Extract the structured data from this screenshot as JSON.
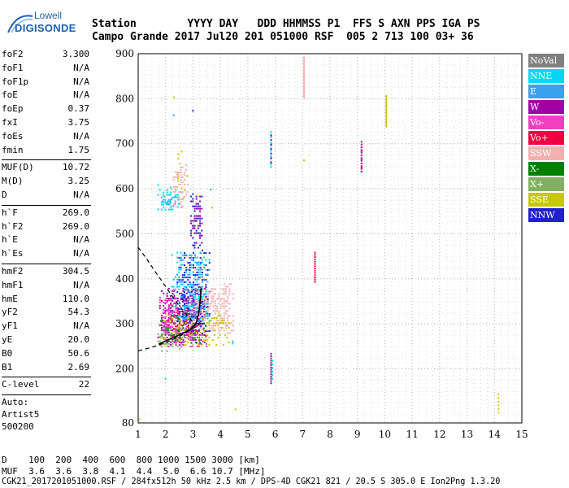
{
  "logo": {
    "line1": "Lowell",
    "line2": "DIGISONDE"
  },
  "header": {
    "row1": [
      "Station",
      "YYYY",
      "DAY",
      "DDD",
      "HHMMSS",
      "P1",
      "FFS",
      "S",
      "AXN",
      "PPS",
      "IGA",
      "PS"
    ],
    "row2": [
      "Campo Grande",
      "2017",
      "Jul20",
      "201",
      "051000",
      "RSF",
      "005",
      "2",
      "713",
      "100",
      "03+",
      "36"
    ]
  },
  "params": {
    "group1": [
      {
        "k": "foF2",
        "v": "3.300"
      },
      {
        "k": "foF1",
        "v": "N/A"
      },
      {
        "k": "foF1p",
        "v": "N/A"
      },
      {
        "k": "foE",
        "v": "N/A"
      },
      {
        "k": "foEp",
        "v": "0.37"
      },
      {
        "k": "fxI",
        "v": "3.75"
      },
      {
        "k": "foEs",
        "v": "N/A"
      },
      {
        "k": "fmin",
        "v": "1.75"
      }
    ],
    "group2": [
      {
        "k": "MUF(D)",
        "v": "10.72"
      },
      {
        "k": "M(D)",
        "v": "3.25"
      },
      {
        "k": "D",
        "v": "N/A"
      }
    ],
    "group3": [
      {
        "k": "h`F",
        "v": "269.0"
      },
      {
        "k": "h`F2",
        "v": "269.0"
      },
      {
        "k": "h`E",
        "v": "N/A"
      },
      {
        "k": "h`Es",
        "v": "N/A"
      }
    ],
    "group4": [
      {
        "k": "hmF2",
        "v": "304.5"
      },
      {
        "k": "hmF1",
        "v": "N/A"
      },
      {
        "k": "hmE",
        "v": "110.0"
      },
      {
        "k": "yF2",
        "v": "54.3"
      },
      {
        "k": "yF1",
        "v": "N/A"
      },
      {
        "k": "yE",
        "v": "20.0"
      },
      {
        "k": "B0",
        "v": "50.6"
      },
      {
        "k": "B1",
        "v": "2.69"
      }
    ],
    "group5": [
      {
        "k": "C-level",
        "v": "22"
      }
    ],
    "auto": [
      "Auto:",
      "Artist5",
      "500200"
    ]
  },
  "legend": [
    {
      "label": "NoVal",
      "color": "#808080"
    },
    {
      "label": "NNE",
      "color": "#00d8f0"
    },
    {
      "label": "E",
      "color": "#3aa0f0"
    },
    {
      "label": "W",
      "color": "#a000a8"
    },
    {
      "label": "Vo-",
      "color": "#f040c0"
    },
    {
      "label": "Vo+",
      "color": "#f00040"
    },
    {
      "label": "SSW",
      "color": "#f4b0b0"
    },
    {
      "label": "X-",
      "color": "#008000"
    },
    {
      "label": "X+",
      "color": "#80b060"
    },
    {
      "label": "SSE",
      "color": "#c8c800"
    },
    {
      "label": "NNW",
      "color": "#2020d0"
    }
  ],
  "bottom": {
    "row_d": "D    100  200  400  600  800 1000 1500 3000 [km]",
    "row_muf": "MUF  3.6  3.6  3.8  4.1  4.4  5.0  6.6 10.7 [MHz]",
    "footer": "CGK21_2017201051000.RSF / 284fx512h 50 kHz 2.5 km / DPS-4D CGK21 821 / 20.5 S 305.0 E Ion2Png 1.3.20"
  },
  "chart_data": {
    "type": "scatter",
    "xlim": [
      1,
      15
    ],
    "ylim": [
      80,
      900
    ],
    "x_ticks": [
      1,
      2,
      3,
      4,
      5,
      6,
      7,
      8,
      9,
      10,
      11,
      12,
      13,
      14,
      15
    ],
    "y_ticks": [
      80,
      200,
      300,
      400,
      500,
      600,
      700,
      800,
      900
    ],
    "grid": true,
    "profile_curve": [
      [
        1.75,
        255
      ],
      [
        2.0,
        262
      ],
      [
        2.3,
        270
      ],
      [
        2.6,
        278
      ],
      [
        2.9,
        288
      ],
      [
        3.1,
        300
      ],
      [
        3.2,
        320
      ],
      [
        3.25,
        345
      ],
      [
        3.3,
        380
      ]
    ],
    "model_dashed_curve": [
      [
        1.0,
        470
      ],
      [
        1.3,
        445
      ],
      [
        1.6,
        418
      ],
      [
        1.9,
        392
      ],
      [
        2.2,
        365
      ],
      [
        2.5,
        340
      ],
      [
        2.8,
        318
      ],
      [
        3.0,
        304
      ],
      [
        3.2,
        300
      ]
    ],
    "lower_dashed_curve": [
      [
        1.0,
        240
      ],
      [
        1.5,
        248
      ],
      [
        2.0,
        258
      ],
      [
        2.5,
        272
      ],
      [
        3.0,
        290
      ],
      [
        3.3,
        302
      ]
    ],
    "echo_clusters": [
      {
        "color": "#a000a8",
        "x": [
          1.7,
          3.4
        ],
        "y": [
          250,
          380
        ],
        "density": 0.55
      },
      {
        "color": "#f040c0",
        "x": [
          1.7,
          3.5
        ],
        "y": [
          250,
          360
        ],
        "density": 0.35
      },
      {
        "color": "#f00040",
        "x": [
          2.2,
          3.6
        ],
        "y": [
          270,
          340
        ],
        "density": 0.2
      },
      {
        "color": "#f4b0b0",
        "x": [
          3.0,
          4.5
        ],
        "y": [
          280,
          390
        ],
        "density": 0.55
      },
      {
        "color": "#2020d0",
        "x": [
          2.4,
          3.6
        ],
        "y": [
          280,
          470
        ],
        "density": 0.35
      },
      {
        "color": "#00d8f0",
        "x": [
          2.2,
          3.6
        ],
        "y": [
          290,
          460
        ],
        "density": 0.25
      },
      {
        "color": "#3aa0f0",
        "x": [
          2.2,
          3.6
        ],
        "y": [
          290,
          460
        ],
        "density": 0.2
      },
      {
        "color": "#80b060",
        "x": [
          1.7,
          2.6
        ],
        "y": [
          240,
          290
        ],
        "density": 0.4
      },
      {
        "color": "#c8c800",
        "x": [
          1.8,
          4.4
        ],
        "y": [
          250,
          320
        ],
        "density": 0.25
      },
      {
        "color": "#008000",
        "x": [
          1.8,
          3.5
        ],
        "y": [
          250,
          330
        ],
        "density": 0.1
      },
      {
        "color": "#2020d0",
        "x": [
          2.9,
          3.3
        ],
        "y": [
          470,
          590
        ],
        "density": 0.45
      },
      {
        "color": "#a000a8",
        "x": [
          2.9,
          3.3
        ],
        "y": [
          470,
          590
        ],
        "density": 0.3
      },
      {
        "color": "#00d8f0",
        "x": [
          1.7,
          2.6
        ],
        "y": [
          555,
          610
        ],
        "density": 0.35
      },
      {
        "color": "#3aa0f0",
        "x": [
          1.8,
          2.5
        ],
        "y": [
          560,
          590
        ],
        "density": 0.3
      },
      {
        "color": "#c8c800",
        "x": [
          2.3,
          2.8
        ],
        "y": [
          580,
          690
        ],
        "density": 0.2
      },
      {
        "color": "#f4b0b0",
        "x": [
          2.2,
          2.8
        ],
        "y": [
          560,
          660
        ],
        "density": 0.25
      }
    ],
    "echo_columns": [
      {
        "color": "#00d8f0",
        "x": 5.85,
        "y": [
          650,
          730
        ],
        "step": 6
      },
      {
        "color": "#2020d0",
        "x": 5.85,
        "y": [
          660,
          720
        ],
        "step": 10
      },
      {
        "color": "#a000a8",
        "x": 5.85,
        "y": [
          170,
          235
        ],
        "step": 5
      },
      {
        "color": "#00d8f0",
        "x": 5.9,
        "y": [
          180,
          220
        ],
        "step": 8
      },
      {
        "color": "#f4b0b0",
        "x": 7.05,
        "y": [
          805,
          895
        ],
        "step": 4
      },
      {
        "color": "#f00040",
        "x": 7.45,
        "y": [
          395,
          460
        ],
        "step": 5
      },
      {
        "color": "#a000a8",
        "x": 9.15,
        "y": [
          640,
          710
        ],
        "step": 6
      },
      {
        "color": "#f00040",
        "x": 9.15,
        "y": [
          640,
          700
        ],
        "step": 9
      },
      {
        "color": "#c8c800",
        "x": 10.05,
        "y": [
          740,
          810
        ],
        "step": 4
      },
      {
        "color": "#c8c800",
        "x": 14.15,
        "y": [
          105,
          145
        ],
        "step": 8
      }
    ],
    "echo_points": [
      {
        "color": "#3aa0f0",
        "x": 2.3,
        "y": 765
      },
      {
        "color": "#c8c800",
        "x": 2.3,
        "y": 805
      },
      {
        "color": "#2020d0",
        "x": 3.0,
        "y": 775
      },
      {
        "color": "#00d8f0",
        "x": 2.0,
        "y": 180
      },
      {
        "color": "#00d8f0",
        "x": 4.45,
        "y": 258
      },
      {
        "color": "#3aa0f0",
        "x": 4.45,
        "y": 263
      },
      {
        "color": "#c8c800",
        "x": 4.55,
        "y": 112
      },
      {
        "color": "#c8c800",
        "x": 1.05,
        "y": 90
      },
      {
        "color": "#c8c800",
        "x": 7.05,
        "y": 665
      },
      {
        "color": "#f00040",
        "x": 2.1,
        "y": 310
      },
      {
        "color": "#3aa0f0",
        "x": 3.65,
        "y": 600
      },
      {
        "color": "#c8c800",
        "x": 3.7,
        "y": 560
      }
    ]
  }
}
